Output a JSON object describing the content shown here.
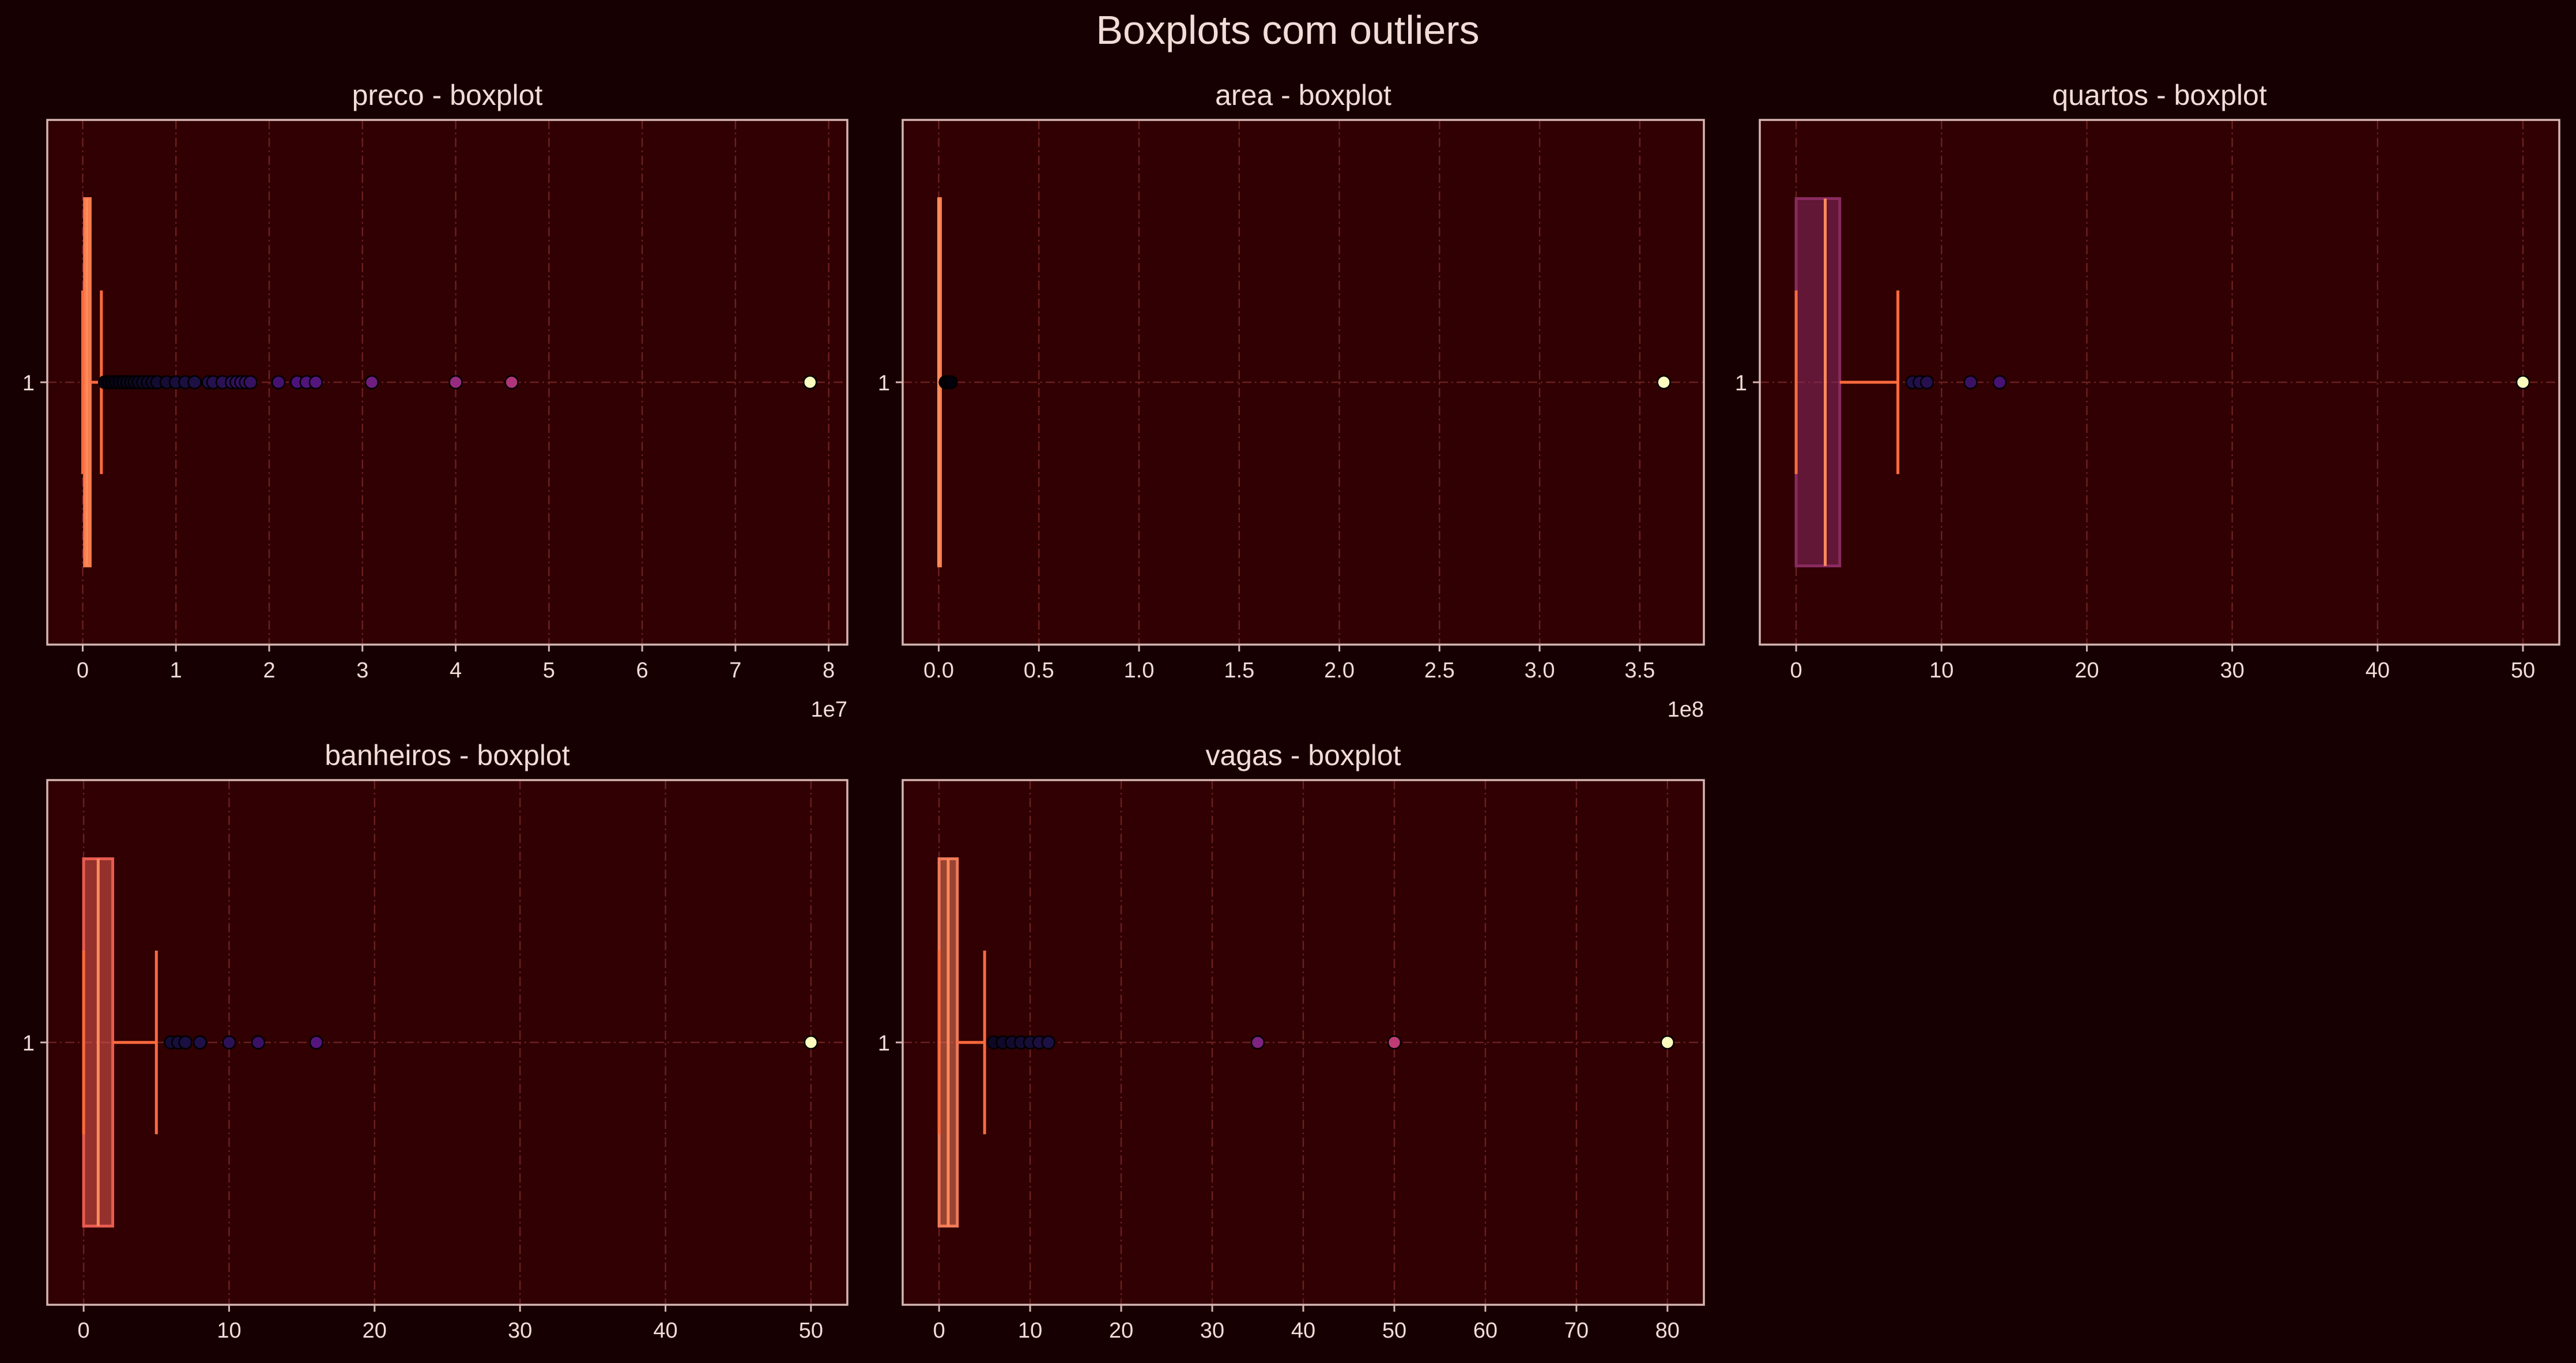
{
  "figure": {
    "title": "Boxplots com outliers",
    "colors": {
      "figure_bg": "#170002",
      "axes_bg": "#300002",
      "spine": "#d6b6b2",
      "text": "#f2dcd8",
      "grid": "#6a1f1f",
      "whisker": "#ff6a3d",
      "median": "#ff8a5c"
    }
  },
  "chart_data": [
    {
      "type": "boxplot",
      "title": "preco - boxplot",
      "ytick": "1",
      "xlim": [
        -3800000,
        82000000
      ],
      "xticks": [
        0,
        10000000,
        20000000,
        30000000,
        40000000,
        50000000,
        60000000,
        70000000,
        80000000
      ],
      "xtick_labels": [
        "0",
        "1",
        "2",
        "3",
        "4",
        "5",
        "6",
        "7",
        "8"
      ],
      "offset_label": "1e7",
      "grid": true,
      "box_fill": "#ff7a4a",
      "box": {
        "q1": 200000,
        "median": 480000,
        "q3": 800000,
        "whisker_low": 0,
        "whisker_high": 2000000
      },
      "outliers": [
        2400000,
        2800000,
        3200000,
        3600000,
        4000000,
        4400000,
        4800000,
        5200000,
        5600000,
        6000000,
        6500000,
        7000000,
        7500000,
        8000000,
        9000000,
        10000000,
        11000000,
        12000000,
        13500000,
        14000000,
        15000000,
        16000000,
        16500000,
        17000000,
        17500000,
        18000000,
        21000000,
        23000000,
        24000000,
        25000000,
        31000000,
        40000000,
        46000000,
        78000000
      ]
    },
    {
      "type": "boxplot",
      "title": "area - boxplot",
      "ytick": "1",
      "xlim": [
        -18000000,
        382000000
      ],
      "xticks": [
        0,
        50000000,
        100000000,
        150000000,
        200000000,
        250000000,
        300000000,
        350000000
      ],
      "xtick_labels": [
        "0.0",
        "0.5",
        "1.0",
        "1.5",
        "2.0",
        "2.5",
        "3.0",
        "3.5"
      ],
      "offset_label": "1e8",
      "grid": true,
      "box_fill": "#ff7a4a",
      "box": {
        "q1": 0,
        "median": 0,
        "q3": 0,
        "whisker_low": 0,
        "whisker_high": 300
      },
      "outliers": [
        3500000,
        4500000,
        6000000,
        362000000
      ]
    },
    {
      "type": "boxplot",
      "title": "quartos - boxplot",
      "ytick": "1",
      "xlim": [
        -2.5,
        52.5
      ],
      "xticks": [
        0,
        10,
        20,
        30,
        40,
        50
      ],
      "xtick_labels": [
        "0",
        "10",
        "20",
        "30",
        "40",
        "50"
      ],
      "offset_label": "",
      "grid": true,
      "box_fill": "#8a2a60",
      "box": {
        "q1": 0,
        "median": 2,
        "q3": 3,
        "whisker_low": 0,
        "whisker_high": 7
      },
      "outliers": [
        8,
        8.5,
        9,
        12,
        14,
        50
      ]
    },
    {
      "type": "boxplot",
      "title": "banheiros - boxplot",
      "ytick": "1",
      "xlim": [
        -2.5,
        52.5
      ],
      "xticks": [
        0,
        10,
        20,
        30,
        40,
        50
      ],
      "xtick_labels": [
        "0",
        "10",
        "20",
        "30",
        "40",
        "50"
      ],
      "offset_label": "",
      "grid": true,
      "box_fill": "#e85a50",
      "box": {
        "q1": 0,
        "median": 1,
        "q3": 2,
        "whisker_low": 0,
        "whisker_high": 5
      },
      "outliers": [
        6,
        6.5,
        7,
        8,
        10,
        12,
        16,
        50
      ]
    },
    {
      "type": "boxplot",
      "title": "vagas - boxplot",
      "ytick": "1",
      "xlim": [
        -4,
        84
      ],
      "xticks": [
        0,
        10,
        20,
        30,
        40,
        50,
        60,
        70,
        80
      ],
      "xtick_labels": [
        "0",
        "10",
        "20",
        "30",
        "40",
        "50",
        "60",
        "70",
        "80"
      ],
      "offset_label": "",
      "grid": true,
      "box_fill": "#f07a5a",
      "box": {
        "q1": 0,
        "median": 1,
        "q3": 2,
        "whisker_low": 0,
        "whisker_high": 5
      },
      "outliers": [
        6,
        7,
        8,
        9,
        10,
        11,
        12,
        35,
        50,
        80
      ]
    }
  ]
}
